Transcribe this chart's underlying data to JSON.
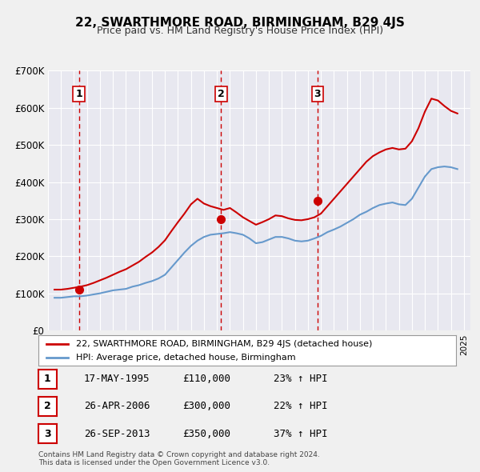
{
  "title": "22, SWARTHMORE ROAD, BIRMINGHAM, B29 4JS",
  "subtitle": "Price paid vs. HM Land Registry's House Price Index (HPI)",
  "background_color": "#f0f0f0",
  "plot_bg_color": "#e8e8f0",
  "grid_color": "#ffffff",
  "ylim": [
    0,
    700000
  ],
  "yticks": [
    0,
    100000,
    200000,
    300000,
    400000,
    500000,
    600000,
    700000
  ],
  "ytick_labels": [
    "£0",
    "£100K",
    "£200K",
    "£300K",
    "£400K",
    "£500K",
    "£600K",
    "£700K"
  ],
  "xlim_start": 1993.0,
  "xlim_end": 2025.5,
  "sale_color": "#cc0000",
  "hpi_color": "#6699cc",
  "sale_dates": [
    1995.37,
    2006.32,
    2013.74
  ],
  "sale_prices": [
    110000,
    300000,
    350000
  ],
  "sale_labels": [
    "1",
    "2",
    "3"
  ],
  "dashed_line_color": "#cc0000",
  "legend_label_sale": "22, SWARTHMORE ROAD, BIRMINGHAM, B29 4JS (detached house)",
  "legend_label_hpi": "HPI: Average price, detached house, Birmingham",
  "table_rows": [
    {
      "num": "1",
      "date": "17-MAY-1995",
      "price": "£110,000",
      "change": "23% ↑ HPI"
    },
    {
      "num": "2",
      "date": "26-APR-2006",
      "price": "£300,000",
      "change": "22% ↑ HPI"
    },
    {
      "num": "3",
      "date": "26-SEP-2013",
      "price": "£350,000",
      "change": "37% ↑ HPI"
    }
  ],
  "footer": "Contains HM Land Registry data © Crown copyright and database right 2024.\nThis data is licensed under the Open Government Licence v3.0.",
  "hpi_data": {
    "years": [
      1993.5,
      1994.0,
      1994.5,
      1995.0,
      1995.5,
      1996.0,
      1996.5,
      1997.0,
      1997.5,
      1998.0,
      1998.5,
      1999.0,
      1999.5,
      2000.0,
      2000.5,
      2001.0,
      2001.5,
      2002.0,
      2002.5,
      2003.0,
      2003.5,
      2004.0,
      2004.5,
      2005.0,
      2005.5,
      2006.0,
      2006.5,
      2007.0,
      2007.5,
      2008.0,
      2008.5,
      2009.0,
      2009.5,
      2010.0,
      2010.5,
      2011.0,
      2011.5,
      2012.0,
      2012.5,
      2013.0,
      2013.5,
      2014.0,
      2014.5,
      2015.0,
      2015.5,
      2016.0,
      2016.5,
      2017.0,
      2017.5,
      2018.0,
      2018.5,
      2019.0,
      2019.5,
      2020.0,
      2020.5,
      2021.0,
      2021.5,
      2022.0,
      2022.5,
      2023.0,
      2023.5,
      2024.0,
      2024.5
    ],
    "values": [
      88000,
      88000,
      90000,
      92000,
      92000,
      94000,
      97000,
      100000,
      104000,
      108000,
      110000,
      112000,
      118000,
      122000,
      128000,
      133000,
      140000,
      150000,
      170000,
      190000,
      210000,
      228000,
      242000,
      252000,
      258000,
      260000,
      262000,
      265000,
      262000,
      258000,
      248000,
      235000,
      238000,
      245000,
      252000,
      252000,
      248000,
      242000,
      240000,
      242000,
      248000,
      255000,
      265000,
      272000,
      280000,
      290000,
      300000,
      312000,
      320000,
      330000,
      338000,
      342000,
      345000,
      340000,
      338000,
      355000,
      385000,
      415000,
      435000,
      440000,
      442000,
      440000,
      435000
    ]
  },
  "hpi_red_data": {
    "years": [
      1993.5,
      1994.0,
      1994.5,
      1995.0,
      1995.5,
      1996.0,
      1996.5,
      1997.0,
      1997.5,
      1998.0,
      1998.5,
      1999.0,
      1999.5,
      2000.0,
      2000.5,
      2001.0,
      2001.5,
      2002.0,
      2002.5,
      2003.0,
      2003.5,
      2004.0,
      2004.5,
      2005.0,
      2005.5,
      2006.0,
      2006.5,
      2007.0,
      2007.5,
      2008.0,
      2008.5,
      2009.0,
      2009.5,
      2010.0,
      2010.5,
      2011.0,
      2011.5,
      2012.0,
      2012.5,
      2013.0,
      2013.5,
      2014.0,
      2014.5,
      2015.0,
      2015.5,
      2016.0,
      2016.5,
      2017.0,
      2017.5,
      2018.0,
      2018.5,
      2019.0,
      2019.5,
      2020.0,
      2020.5,
      2021.0,
      2021.5,
      2022.0,
      2022.5,
      2023.0,
      2023.5,
      2024.0,
      2024.5
    ],
    "values": [
      110000,
      110000,
      112000,
      115000,
      118000,
      122000,
      128000,
      135000,
      142000,
      150000,
      158000,
      165000,
      175000,
      185000,
      198000,
      210000,
      225000,
      243000,
      268000,
      292000,
      315000,
      340000,
      355000,
      342000,
      335000,
      330000,
      325000,
      330000,
      318000,
      305000,
      295000,
      285000,
      292000,
      300000,
      310000,
      308000,
      302000,
      298000,
      297000,
      300000,
      305000,
      315000,
      335000,
      355000,
      375000,
      395000,
      415000,
      435000,
      455000,
      470000,
      480000,
      488000,
      492000,
      488000,
      490000,
      510000,
      545000,
      590000,
      625000,
      620000,
      605000,
      592000,
      585000
    ]
  }
}
